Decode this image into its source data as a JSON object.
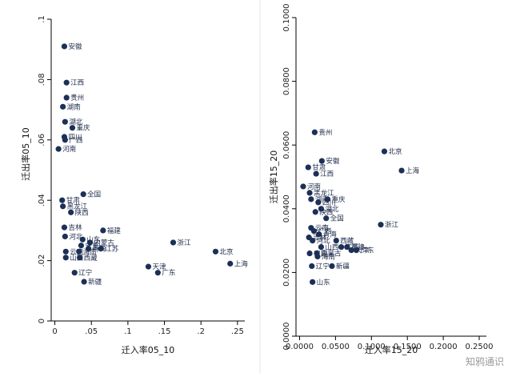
{
  "watermark": "知鸦通识",
  "chart_data": [
    {
      "type": "scatter",
      "xlabel": "迁入率05_10",
      "ylabel": "迁出率05_10",
      "xlim": [
        -0.005,
        0.26
      ],
      "ylim": [
        0,
        0.1
      ],
      "x_ticks": [
        0,
        0.05,
        0.1,
        0.15,
        0.2,
        0.25
      ],
      "x_tick_labels": [
        "0",
        ".05",
        ".1",
        ".15",
        ".2",
        ".25"
      ],
      "y_ticks": [
        0,
        0.02,
        0.04,
        0.06,
        0.08,
        0.1
      ],
      "y_tick_labels": [
        "0",
        ".02",
        ".04",
        ".06",
        ".08",
        ".1"
      ],
      "points": [
        {
          "label": "安徽",
          "x": 0.013,
          "y": 0.091
        },
        {
          "label": "江西",
          "x": 0.016,
          "y": 0.079
        },
        {
          "label": "贵州",
          "x": 0.016,
          "y": 0.074
        },
        {
          "label": "湖南",
          "x": 0.011,
          "y": 0.071
        },
        {
          "label": "湖北",
          "x": 0.014,
          "y": 0.066
        },
        {
          "label": "重庆",
          "x": 0.024,
          "y": 0.064
        },
        {
          "label": "四川",
          "x": 0.013,
          "y": 0.061
        },
        {
          "label": "广西",
          "x": 0.014,
          "y": 0.06
        },
        {
          "label": "河南",
          "x": 0.005,
          "y": 0.057
        },
        {
          "label": "全国",
          "x": 0.039,
          "y": 0.042
        },
        {
          "label": "甘肃",
          "x": 0.01,
          "y": 0.04
        },
        {
          "label": "黑龙江",
          "x": 0.011,
          "y": 0.038
        },
        {
          "label": "陕西",
          "x": 0.022,
          "y": 0.036
        },
        {
          "label": "吉林",
          "x": 0.013,
          "y": 0.031
        },
        {
          "label": "福建",
          "x": 0.066,
          "y": 0.03
        },
        {
          "label": "河北",
          "x": 0.014,
          "y": 0.028
        },
        {
          "label": "山东",
          "x": 0.038,
          "y": 0.027
        },
        {
          "label": "内蒙古",
          "x": 0.048,
          "y": 0.026
        },
        {
          "label": "宁夏",
          "x": 0.036,
          "y": 0.025
        },
        {
          "label": "青海",
          "x": 0.046,
          "y": 0.024
        },
        {
          "label": "云南",
          "x": 0.015,
          "y": 0.023
        },
        {
          "label": "江苏",
          "x": 0.063,
          "y": 0.024
        },
        {
          "label": "海南",
          "x": 0.033,
          "y": 0.023
        },
        {
          "label": "山西",
          "x": 0.015,
          "y": 0.021
        },
        {
          "label": "西藏",
          "x": 0.034,
          "y": 0.021
        },
        {
          "label": "浙江",
          "x": 0.162,
          "y": 0.026
        },
        {
          "label": "北京",
          "x": 0.22,
          "y": 0.023
        },
        {
          "label": "上海",
          "x": 0.24,
          "y": 0.019
        },
        {
          "label": "天津",
          "x": 0.128,
          "y": 0.018
        },
        {
          "label": "广东",
          "x": 0.141,
          "y": 0.016
        },
        {
          "label": "辽宁",
          "x": 0.027,
          "y": 0.016
        },
        {
          "label": "新疆",
          "x": 0.04,
          "y": 0.013
        }
      ]
    },
    {
      "type": "scatter",
      "xlabel": "迁入率15_20",
      "ylabel": "迁出率15_20",
      "xlim": [
        -0.005,
        0.26
      ],
      "ylim": [
        0,
        0.1
      ],
      "x_ticks": [
        0,
        0.05,
        0.1,
        0.15,
        0.2,
        0.25
      ],
      "x_tick_labels": [
        "0.0000",
        "0.0500",
        "0.1000",
        "0.1500",
        "0.2000",
        "0.2500"
      ],
      "y_ticks": [
        0,
        0.02,
        0.04,
        0.06,
        0.08,
        0.1
      ],
      "y_tick_labels": [
        "0.0000",
        "0.0200",
        "0.0400",
        "0.0600",
        "0.0800",
        "0.1000"
      ],
      "points": [
        {
          "label": "贵州",
          "x": 0.021,
          "y": 0.064
        },
        {
          "label": "北京",
          "x": 0.118,
          "y": 0.058
        },
        {
          "label": "安徽",
          "x": 0.031,
          "y": 0.055
        },
        {
          "label": "甘肃",
          "x": 0.012,
          "y": 0.053
        },
        {
          "label": "上海",
          "x": 0.142,
          "y": 0.052
        },
        {
          "label": "江西",
          "x": 0.023,
          "y": 0.051
        },
        {
          "label": "河南",
          "x": 0.005,
          "y": 0.047
        },
        {
          "label": "黑龙江",
          "x": 0.014,
          "y": 0.045
        },
        {
          "label": "湖南",
          "x": 0.016,
          "y": 0.043
        },
        {
          "label": "重庆",
          "x": 0.039,
          "y": 0.043
        },
        {
          "label": "四川",
          "x": 0.026,
          "y": 0.042
        },
        {
          "label": "湖北",
          "x": 0.03,
          "y": 0.04
        },
        {
          "label": "陕西",
          "x": 0.022,
          "y": 0.039
        },
        {
          "label": "全国",
          "x": 0.037,
          "y": 0.037
        },
        {
          "label": "浙江",
          "x": 0.113,
          "y": 0.035
        },
        {
          "label": "云南",
          "x": 0.016,
          "y": 0.034
        },
        {
          "label": "广西",
          "x": 0.02,
          "y": 0.033
        },
        {
          "label": "青海",
          "x": 0.027,
          "y": 0.032
        },
        {
          "label": "吉林",
          "x": 0.013,
          "y": 0.031
        },
        {
          "label": "西藏",
          "x": 0.051,
          "y": 0.03
        },
        {
          "label": "河北",
          "x": 0.018,
          "y": 0.03
        },
        {
          "label": "山西",
          "x": 0.03,
          "y": 0.028
        },
        {
          "label": "江苏",
          "x": 0.058,
          "y": 0.028
        },
        {
          "label": "福建",
          "x": 0.066,
          "y": 0.028
        },
        {
          "label": "天津",
          "x": 0.072,
          "y": 0.027
        },
        {
          "label": "广东",
          "x": 0.079,
          "y": 0.027
        },
        {
          "label": "宁夏",
          "x": 0.014,
          "y": 0.026
        },
        {
          "label": "内蒙古",
          "x": 0.024,
          "y": 0.026
        },
        {
          "label": "海南",
          "x": 0.025,
          "y": 0.025
        },
        {
          "label": "辽宁",
          "x": 0.017,
          "y": 0.022
        },
        {
          "label": "新疆",
          "x": 0.045,
          "y": 0.022
        },
        {
          "label": "山东",
          "x": 0.018,
          "y": 0.017
        }
      ]
    }
  ]
}
